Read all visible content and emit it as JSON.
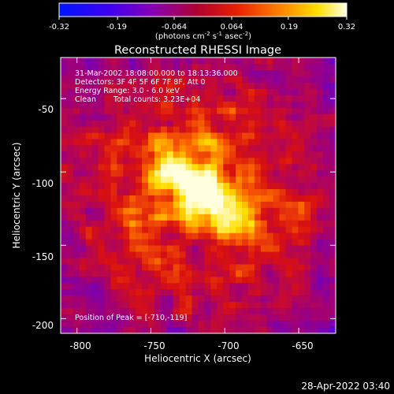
{
  "colorbar": {
    "tick_labels": [
      "-0.32",
      "-0.19",
      "-0.064",
      "0.064",
      "0.19",
      "0.32"
    ],
    "ticks": [
      -0.32,
      -0.19,
      -0.064,
      0.064,
      0.19,
      0.32
    ],
    "range": [
      -0.32,
      0.32
    ],
    "unit_main": "(photons cm",
    "unit_exp1": "-2",
    "unit_s": " s",
    "unit_exp2": "-1",
    "unit_asec": " asec",
    "unit_exp3": "-2",
    "unit_close": ")"
  },
  "chart_data": {
    "type": "heatmap",
    "title": "Reconstructed RHESSI Image",
    "xlabel": "Heliocentric X (arcsec)",
    "ylabel": "Heliocentric Y (arcsec)",
    "xlim": [
      -811,
      -625
    ],
    "ylim": [
      -210,
      -22
    ],
    "xticks": [
      -800,
      -750,
      -700,
      -650
    ],
    "yticks": [
      -50,
      -100,
      -150,
      -200
    ],
    "xtick_labels": [
      "-800",
      "-750",
      "-700",
      "-650"
    ],
    "ytick_labels": [
      "-50",
      "-100",
      "-150",
      "-200"
    ],
    "peak": {
      "x": -710,
      "y": -119,
      "label": "Position of Peak = [-710,-119]"
    },
    "source": {
      "center": [
        -718,
        -113
      ],
      "orientation_deg": -38,
      "semi_major": 24,
      "semi_minor": 10,
      "peak_value": 0.32
    },
    "annotations": [
      "31-Mar-2002 18:08:00.000 to 18:13:36.000",
      "Detectors: 3F 4F 5F 6F 7F 8F, Att 0",
      "Energy Range: 3.0 - 6.0 keV",
      "Clean",
      "Total counts: 3.23E+04"
    ],
    "colormap": [
      "#0014ff",
      "#6000d8",
      "#a00078",
      "#d81010",
      "#ff7000",
      "#ffe000",
      "#ffffe0"
    ]
  },
  "footer": {
    "timestamp": "28-Apr-2022 03:40"
  }
}
